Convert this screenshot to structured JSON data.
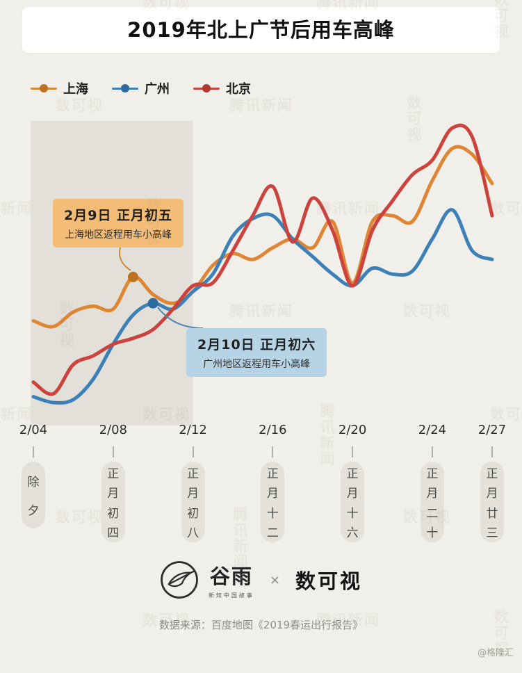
{
  "page": {
    "background": "#f1efe9",
    "watermarks": [
      "腾讯新闻",
      "数可视"
    ],
    "credit": "@格隆汇"
  },
  "title": "2019年北上广节后用车高峰",
  "legend": [
    {
      "label": "上海",
      "color": "#de8634",
      "dot_color": "#bd7220"
    },
    {
      "label": "广州",
      "color": "#3d80b8",
      "dot_color": "#2d6aa0"
    },
    {
      "label": "北京",
      "color": "#cb433c",
      "dot_color": "#b5352f"
    }
  ],
  "annotations": {
    "shanghai": {
      "title": "2月9日  正月初五",
      "subtitle": "上海地区返程用车小高峰",
      "bg": "#f4bd77"
    },
    "guangzhou": {
      "title": "2月10日  正月初六",
      "subtitle": "广州地区返程用车小高峰",
      "bg": "#b7d3e6"
    }
  },
  "chart_data": {
    "type": "line",
    "title": "2019年北上广节后用车高峰",
    "xlabel": "",
    "ylabel": "",
    "ylim": [
      0,
      100
    ],
    "y_axis_visible": false,
    "grid": false,
    "legend_position": "top-left",
    "x": [
      "2/04",
      "2/05",
      "2/06",
      "2/07",
      "2/08",
      "2/09",
      "2/10",
      "2/11",
      "2/12",
      "2/13",
      "2/14",
      "2/15",
      "2/16",
      "2/17",
      "2/18",
      "2/19",
      "2/20",
      "2/21",
      "2/22",
      "2/23",
      "2/24",
      "2/25",
      "2/26",
      "2/27"
    ],
    "x_tick_labels": [
      "2/04",
      "2/08",
      "2/12",
      "2/16",
      "2/20",
      "2/24",
      "2/27"
    ],
    "x_tick_indices": [
      0,
      4,
      8,
      12,
      16,
      20,
      23
    ],
    "shaded_region": {
      "from": "2/04",
      "to": "2/12",
      "from_index": 0,
      "to_index": 8
    },
    "series": [
      {
        "name": "上海",
        "color": "#de8634",
        "dot_color": "#bd7220",
        "values": [
          33,
          31,
          36,
          38,
          37,
          48,
          42,
          39,
          43,
          52,
          56,
          54,
          58,
          61,
          58,
          67,
          46,
          67,
          69,
          67,
          81,
          92,
          90,
          80
        ]
      },
      {
        "name": "广州",
        "color": "#3d80b8",
        "dot_color": "#2d6aa0",
        "values": [
          7,
          5,
          6,
          13,
          25,
          35,
          39,
          37,
          43,
          49,
          62,
          68,
          69,
          61,
          55,
          49,
          45,
          51,
          49,
          50,
          61,
          71,
          57,
          54
        ]
      },
      {
        "name": "北京",
        "color": "#cb433c",
        "dot_color": "#b5352f",
        "values": [
          12,
          8,
          18,
          21,
          25,
          27,
          30,
          37,
          45,
          46,
          57,
          69,
          79,
          60,
          75,
          64,
          45,
          64,
          74,
          83,
          88,
          99,
          96,
          69
        ]
      }
    ],
    "highlights": [
      {
        "series_index": 0,
        "x": "2/09",
        "x_index": 5,
        "label": "上海地区返程用车小高峰"
      },
      {
        "series_index": 1,
        "x": "2/10",
        "x_index": 6,
        "label": "广州地区返程用车小高峰"
      }
    ]
  },
  "x_axis_pills": [
    "除夕",
    "正月初四",
    "正月初八",
    "正月十二",
    "正月十六",
    "正月二十",
    "正月廿三"
  ],
  "footer": {
    "guyu_name": "谷雨",
    "guyu_tagline": "新知中国故事",
    "separator": "×",
    "shukeshi_name": "数可视",
    "source": "数据来源：百度地图《2019春运出行报告》"
  }
}
